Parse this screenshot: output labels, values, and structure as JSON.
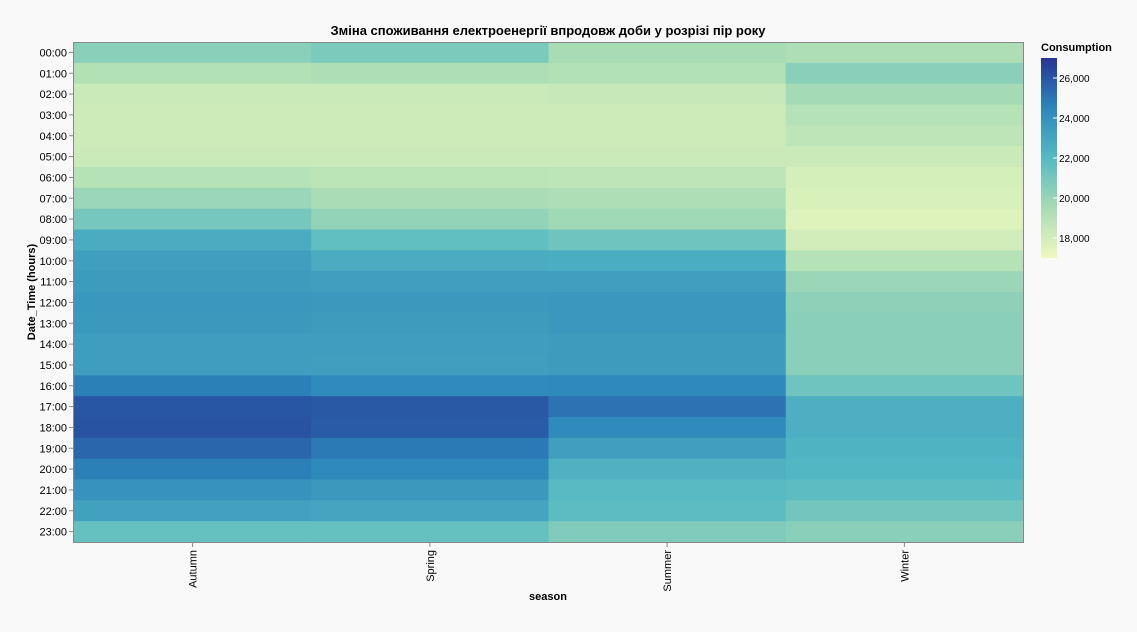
{
  "chart_data": {
    "type": "heatmap",
    "title": "Зміна споживання електроенергії впродовж доби у розрізі пір року",
    "xlabel": "season",
    "ylabel": "Date_Time (hours)",
    "x_categories": [
      "Autumn",
      "Spring",
      "Summer",
      "Winter"
    ],
    "y_categories": [
      "00:00",
      "01:00",
      "02:00",
      "03:00",
      "04:00",
      "05:00",
      "06:00",
      "07:00",
      "08:00",
      "09:00",
      "10:00",
      "11:00",
      "12:00",
      "13:00",
      "14:00",
      "15:00",
      "16:00",
      "17:00",
      "18:00",
      "19:00",
      "20:00",
      "21:00",
      "22:00",
      "23:00"
    ],
    "values": [
      [
        20400,
        20800,
        19500,
        19300
      ],
      [
        19100,
        19300,
        19100,
        20400
      ],
      [
        18300,
        18300,
        18400,
        19600
      ],
      [
        18200,
        18200,
        18200,
        19000
      ],
      [
        18200,
        18200,
        18200,
        18700
      ],
      [
        18300,
        18300,
        18300,
        18300
      ],
      [
        19000,
        18800,
        18700,
        17900
      ],
      [
        19900,
        19400,
        19300,
        17800
      ],
      [
        21000,
        20100,
        19700,
        17600
      ],
      [
        22700,
        21600,
        21200,
        18000
      ],
      [
        23300,
        22700,
        22600,
        19000
      ],
      [
        23500,
        23300,
        23300,
        19900
      ],
      [
        23700,
        23600,
        23700,
        20300
      ],
      [
        23600,
        23500,
        23700,
        20400
      ],
      [
        23400,
        23400,
        23500,
        20400
      ],
      [
        23400,
        23300,
        23500,
        20400
      ],
      [
        24700,
        24300,
        24400,
        21200
      ],
      [
        26000,
        25900,
        25100,
        22500
      ],
      [
        26100,
        25800,
        24300,
        22500
      ],
      [
        25500,
        24900,
        23300,
        22300
      ],
      [
        24700,
        24400,
        22400,
        22100
      ],
      [
        23900,
        23600,
        21900,
        21800
      ],
      [
        23200,
        23000,
        21800,
        21100
      ],
      [
        21500,
        21500,
        20700,
        20400
      ]
    ],
    "legend": {
      "title": "Consumption",
      "domain": [
        17000,
        27000
      ],
      "tick_values": [
        18000,
        20000,
        22000,
        24000,
        26000
      ],
      "tick_labels": [
        "18,000",
        "20,000",
        "22,000",
        "24,000",
        "26,000"
      ],
      "placement": "right"
    },
    "color_scheme": "yellowgreenblue"
  }
}
